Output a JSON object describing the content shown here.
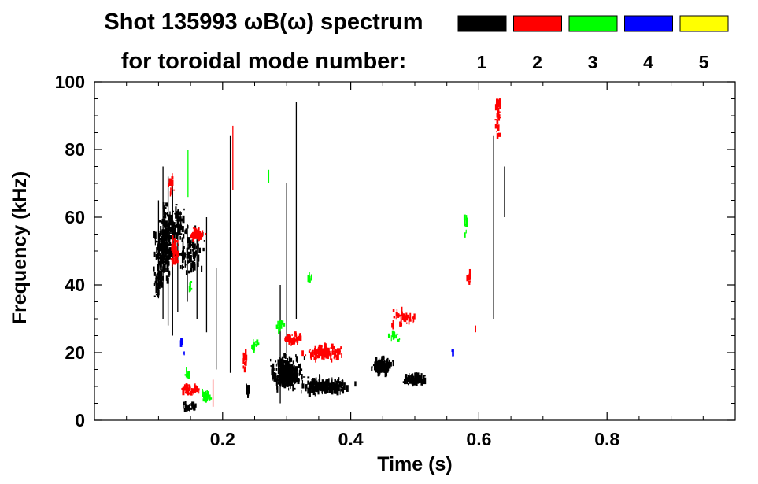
{
  "chart_data": {
    "type": "scatter",
    "title_line1": "Shot 135993 ωB(ω) spectrum",
    "title_line2": "for toroidal mode number:",
    "xlabel": "Time (s)",
    "ylabel": "Frequency (kHz)",
    "xlim": [
      0.0,
      1.0
    ],
    "ylim": [
      0,
      100
    ],
    "x_ticks": [
      0.2,
      0.4,
      0.6,
      0.8
    ],
    "y_ticks": [
      0,
      20,
      40,
      60,
      80,
      100
    ],
    "x_tick_labels": [
      "0.2",
      "0.4",
      "0.6",
      "0.8"
    ],
    "y_tick_labels": [
      "0",
      "20",
      "40",
      "60",
      "80",
      "100"
    ],
    "grid": false,
    "legend_placement": "top-right",
    "legend": [
      {
        "label": "1",
        "color": "#000000"
      },
      {
        "label": "2",
        "color": "#ff0000"
      },
      {
        "label": "3",
        "color": "#00ff00"
      },
      {
        "label": "4",
        "color": "#0000ff"
      },
      {
        "label": "5",
        "color": "#ffff00"
      }
    ],
    "series": [
      {
        "mode": 1,
        "color": "#000000",
        "blobs": [
          {
            "t": 0.11,
            "dt": 0.018,
            "f": 52,
            "df": 14,
            "n": 260
          },
          {
            "t": 0.13,
            "dt": 0.015,
            "f": 58,
            "df": 8,
            "n": 60
          },
          {
            "t": 0.1,
            "dt": 0.01,
            "f": 42,
            "df": 6,
            "n": 50
          },
          {
            "t": 0.15,
            "dt": 0.03,
            "f": 50,
            "df": 10,
            "n": 80
          },
          {
            "t": 0.3,
            "dt": 0.03,
            "f": 14,
            "df": 6,
            "n": 320
          },
          {
            "t": 0.36,
            "dt": 0.05,
            "f": 10,
            "df": 3,
            "n": 180
          },
          {
            "t": 0.45,
            "dt": 0.02,
            "f": 16,
            "df": 3,
            "n": 140
          },
          {
            "t": 0.5,
            "dt": 0.025,
            "f": 12,
            "df": 2,
            "n": 90
          },
          {
            "t": 0.15,
            "dt": 0.015,
            "f": 4,
            "df": 2,
            "n": 30
          },
          {
            "t": 0.24,
            "dt": 0.004,
            "f": 9,
            "df": 2,
            "n": 12
          }
        ],
        "streaks": [
          {
            "t": 0.1,
            "f0": 36,
            "f1": 65
          },
          {
            "t": 0.107,
            "f0": 30,
            "f1": 75
          },
          {
            "t": 0.115,
            "f0": 28,
            "f1": 72
          },
          {
            "t": 0.122,
            "f0": 25,
            "f1": 70
          },
          {
            "t": 0.13,
            "f0": 32,
            "f1": 62
          },
          {
            "t": 0.145,
            "f0": 35,
            "f1": 58
          },
          {
            "t": 0.16,
            "f0": 30,
            "f1": 55
          },
          {
            "t": 0.175,
            "f0": 26,
            "f1": 60
          },
          {
            "t": 0.19,
            "f0": 15,
            "f1": 45
          },
          {
            "t": 0.212,
            "f0": 14,
            "f1": 84
          },
          {
            "t": 0.3,
            "f0": 20,
            "f1": 70
          },
          {
            "t": 0.315,
            "f0": 30,
            "f1": 94
          },
          {
            "t": 0.29,
            "f0": 5,
            "f1": 40
          },
          {
            "t": 0.623,
            "f0": 30,
            "f1": 84
          },
          {
            "t": 0.64,
            "f0": 60,
            "f1": 75
          }
        ]
      },
      {
        "mode": 2,
        "color": "#ff0000",
        "blobs": [
          {
            "t": 0.125,
            "dt": 0.008,
            "f": 50,
            "df": 5,
            "n": 50
          },
          {
            "t": 0.16,
            "dt": 0.015,
            "f": 55,
            "df": 2,
            "n": 50
          },
          {
            "t": 0.15,
            "dt": 0.02,
            "f": 9,
            "df": 2,
            "n": 50
          },
          {
            "t": 0.36,
            "dt": 0.04,
            "f": 20,
            "df": 3,
            "n": 100
          },
          {
            "t": 0.31,
            "dt": 0.02,
            "f": 24,
            "df": 2,
            "n": 40
          },
          {
            "t": 0.48,
            "dt": 0.03,
            "f": 30,
            "df": 4,
            "n": 40
          },
          {
            "t": 0.585,
            "dt": 0.003,
            "f": 42,
            "df": 2,
            "n": 10
          },
          {
            "t": 0.63,
            "dt": 0.006,
            "f": 90,
            "df": 8,
            "n": 30
          },
          {
            "t": 0.12,
            "dt": 0.006,
            "f": 70,
            "df": 4,
            "n": 14
          },
          {
            "t": 0.235,
            "dt": 0.004,
            "f": 18,
            "df": 4,
            "n": 16
          }
        ],
        "streaks": [
          {
            "t": 0.216,
            "f0": 68,
            "f1": 87
          },
          {
            "t": 0.185,
            "f0": 4,
            "f1": 12
          },
          {
            "t": 0.595,
            "f0": 26,
            "f1": 28
          }
        ]
      },
      {
        "mode": 3,
        "color": "#00ff00",
        "blobs": [
          {
            "t": 0.175,
            "dt": 0.01,
            "f": 7,
            "df": 2,
            "n": 30
          },
          {
            "t": 0.145,
            "dt": 0.005,
            "f": 14,
            "df": 2,
            "n": 10
          },
          {
            "t": 0.25,
            "dt": 0.008,
            "f": 22,
            "df": 2,
            "n": 14
          },
          {
            "t": 0.29,
            "dt": 0.008,
            "f": 28,
            "df": 2,
            "n": 14
          },
          {
            "t": 0.335,
            "dt": 0.006,
            "f": 42,
            "df": 2,
            "n": 8
          },
          {
            "t": 0.47,
            "dt": 0.015,
            "f": 25,
            "df": 2,
            "n": 14
          },
          {
            "t": 0.58,
            "dt": 0.004,
            "f": 58,
            "df": 4,
            "n": 12
          },
          {
            "t": 0.15,
            "dt": 0.004,
            "f": 40,
            "df": 3,
            "n": 8
          }
        ],
        "streaks": [
          {
            "t": 0.146,
            "f0": 66,
            "f1": 80
          },
          {
            "t": 0.272,
            "f0": 70,
            "f1": 74
          }
        ]
      },
      {
        "mode": 4,
        "color": "#0000ff",
        "blobs": [
          {
            "t": 0.135,
            "dt": 0.002,
            "f": 23,
            "df": 1,
            "n": 3
          },
          {
            "t": 0.56,
            "dt": 0.002,
            "f": 20,
            "df": 1,
            "n": 3
          },
          {
            "t": 0.14,
            "dt": 0.002,
            "f": 20,
            "df": 1,
            "n": 2
          }
        ],
        "streaks": []
      },
      {
        "mode": 5,
        "color": "#ffff00",
        "blobs": [],
        "streaks": []
      }
    ]
  }
}
